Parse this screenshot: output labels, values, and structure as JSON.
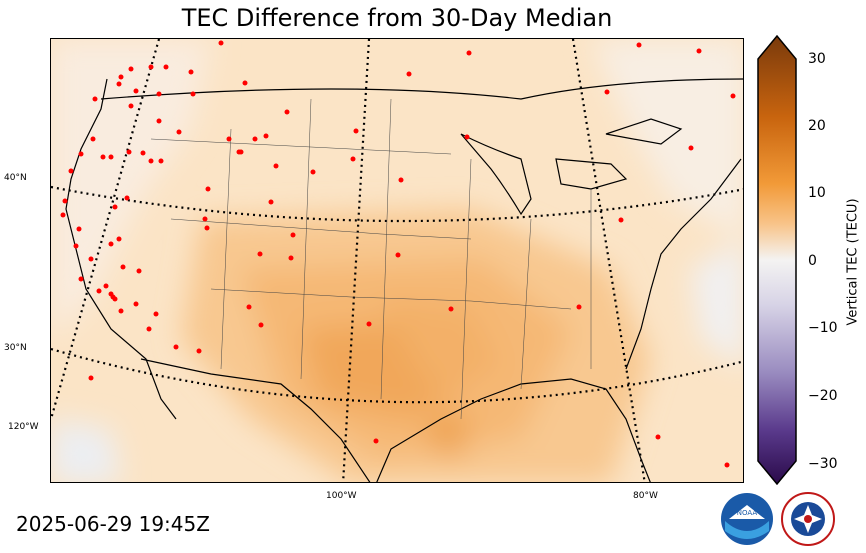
{
  "title": "TEC Difference from 30-Day Median",
  "timestamp": "2025-06-29 19:45Z",
  "lat_labels": [
    "40°N",
    "30°N",
    "120°W"
  ],
  "lon_labels": [
    "100°W",
    "80°W"
  ],
  "colorbar": {
    "label": "Vertical TEC (TECU)",
    "ticks": [
      "30",
      "20",
      "10",
      "0",
      "−10",
      "−20",
      "−30"
    ],
    "range": [
      -30,
      30
    ]
  },
  "logos": {
    "noaa": "NOAA",
    "nws": "NATIONAL WEATHER SERVICE"
  },
  "colors": {
    "positive_max": "#7a3a0c",
    "positive_mid": "#f6b060",
    "neutral": "#f4f4f4",
    "negative_max": "#2a0a4a"
  }
}
